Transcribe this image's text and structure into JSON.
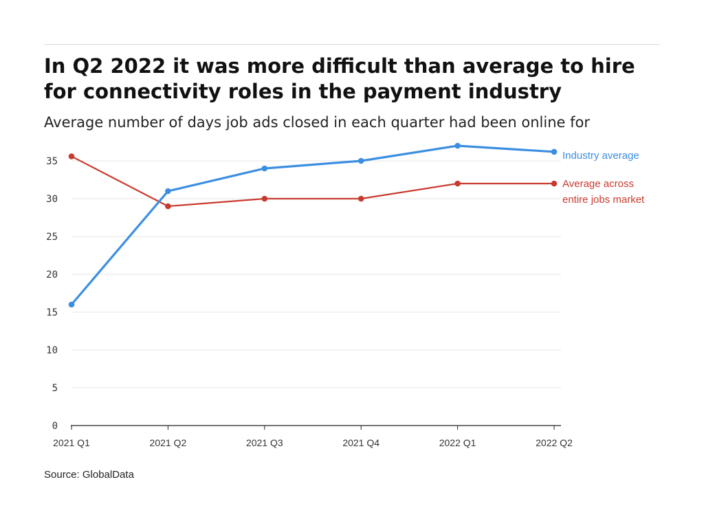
{
  "header": {
    "title": "In Q2 2022 it was more difficult than average to hire for connectivity roles in the payment industry",
    "subtitle": "Average number of days job ads closed in each quarter had been online for"
  },
  "footer": {
    "source": "Source: GlobalData"
  },
  "chart_data": {
    "type": "line",
    "title": "In Q2 2022 it was more difficult than average to hire for connectivity roles in the payment industry",
    "subtitle": "Average number of days job ads closed in each quarter had been online for",
    "xlabel": "",
    "ylabel": "",
    "categories": [
      "2021 Q1",
      "2021 Q2",
      "2021 Q3",
      "2021 Q4",
      "2022 Q1",
      "2022 Q2"
    ],
    "ylim": [
      0,
      35
    ],
    "yticks": [
      0,
      5,
      10,
      15,
      20,
      25,
      30,
      35
    ],
    "grid": true,
    "legend_placement": "right, inline labels at line ends",
    "series": [
      {
        "name": "Industry average",
        "color": "#3b8ee0",
        "values": [
          16,
          31,
          34,
          35,
          37,
          36.2
        ]
      },
      {
        "name": "Average across entire jobs market",
        "label_lines": [
          "Average across",
          "entire jobs market"
        ],
        "color": "#c93a2e",
        "values": [
          35.6,
          29,
          30,
          30,
          32,
          32
        ]
      }
    ]
  }
}
